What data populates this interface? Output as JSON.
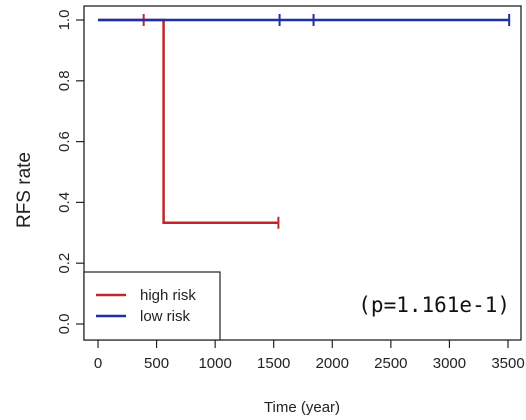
{
  "chart_data": {
    "type": "line",
    "subtype": "kaplan-meier",
    "title": "",
    "xlabel": "Time (year)",
    "ylabel": "RFS rate",
    "xlim": [
      0,
      3600
    ],
    "ylim": [
      0,
      1.05
    ],
    "x_ticks": [
      0,
      500,
      1000,
      1500,
      2000,
      2500,
      3000,
      3500
    ],
    "y_ticks": [
      0.0,
      0.2,
      0.4,
      0.6,
      0.8,
      1.0
    ],
    "x_tick_labels": [
      "0",
      "500",
      "1000",
      "1500",
      "2000",
      "2500",
      "3000",
      "3500"
    ],
    "y_tick_labels": [
      "0.0",
      "0.2",
      "0.4",
      "0.6",
      "0.8",
      "1.0"
    ],
    "grid": false,
    "legend_position": "bottom-left",
    "series": [
      {
        "name": "high risk",
        "color": "#c0272d",
        "steps": [
          [
            0,
            1.0
          ],
          [
            560,
            1.0
          ],
          [
            560,
            0.333
          ],
          [
            1540,
            0.333
          ]
        ],
        "censored": [
          [
            390,
            1.0
          ],
          [
            1540,
            0.333
          ]
        ]
      },
      {
        "name": "low risk",
        "color": "#1f2fa8",
        "steps": [
          [
            0,
            1.0
          ],
          [
            3510,
            1.0
          ]
        ],
        "censored": [
          [
            1550,
            1.0
          ],
          [
            1840,
            1.0
          ],
          [
            3510,
            1.0
          ]
        ]
      }
    ],
    "annotation": "(p=1.161e-1)"
  }
}
